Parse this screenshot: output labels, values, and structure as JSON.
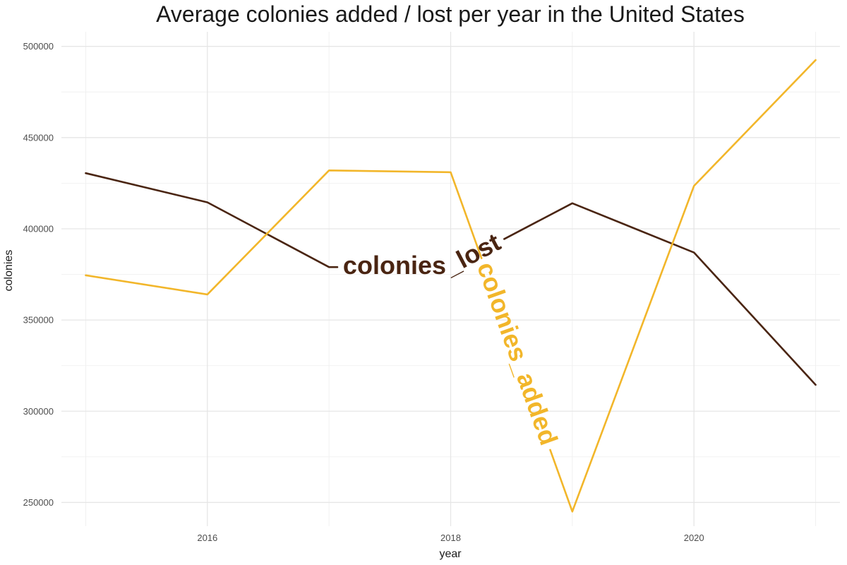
{
  "chart_data": {
    "type": "line",
    "title": "Average colonies added / lost per year in the United States",
    "xlabel": "year",
    "ylabel": "colonies",
    "x": [
      2015,
      2016,
      2017,
      2018,
      2019,
      2020,
      2021
    ],
    "xticks": [
      "2016",
      "2018",
      "2020"
    ],
    "yticks": [
      "250000",
      "300000",
      "350000",
      "400000",
      "450000",
      "500000"
    ],
    "ylim": [
      237000,
      508000
    ],
    "xlim": [
      2014.8,
      2021.2
    ],
    "grid": true,
    "legend": "none (labels placed along lines)",
    "series": [
      {
        "name": "colonies_lost",
        "color": "#4a2512",
        "values": [
          430500,
          414500,
          379000,
          379000,
          414000,
          387000,
          314500
        ]
      },
      {
        "name": "colonies_added",
        "color": "#f2b62a",
        "values": [
          374500,
          364000,
          432000,
          431000,
          245000,
          423500,
          492500
        ]
      }
    ]
  }
}
